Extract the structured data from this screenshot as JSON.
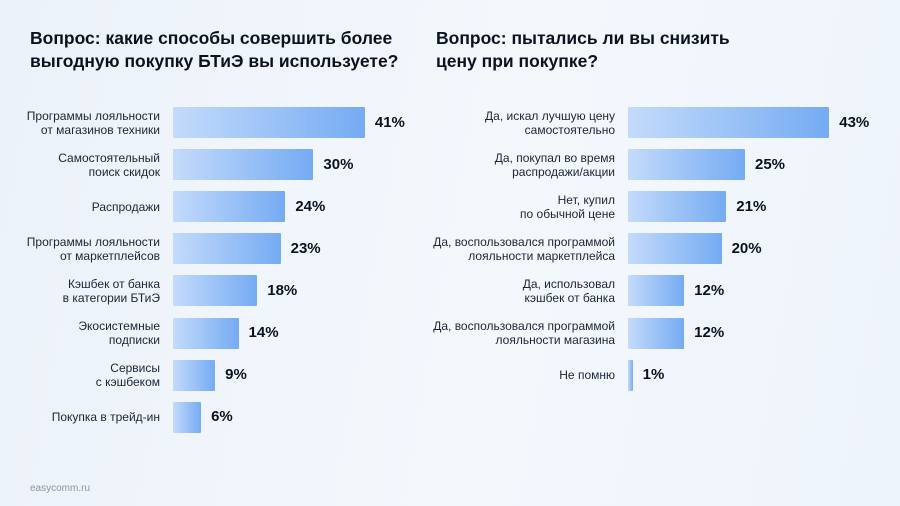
{
  "colors": {
    "background_start": "#ecf2fa",
    "background_mid": "#f4f8fd",
    "background_end": "#eef4fc",
    "text": "#0c1120",
    "label_text": "#1d2434",
    "footer_text": "#8b95a7",
    "bar_start": "#c4dbfb",
    "bar_end": "#75abf3"
  },
  "footer": {
    "site": "easycomm.ru"
  },
  "chart_data": [
    {
      "type": "bar",
      "orientation": "horizontal",
      "title": "Вопрос: какие способы совершить более\nвыгодную покупку БТиЭ вы используете?",
      "categories": [
        "Программы лояльности\nот магазинов техники",
        "Самостоятельный\nпоиск скидок",
        "Распродажи",
        "Программы лояльности\nот маркетплейсов",
        "Кэшбек от банка\nв категории БТиЭ",
        "Экосистемные\nподписки",
        "Сервисы\nс кэшбеком",
        "Покупка в трейд-ин"
      ],
      "values": [
        41,
        30,
        24,
        23,
        18,
        14,
        9,
        6
      ],
      "unit": "%",
      "grid": false,
      "axes_visible": false
    },
    {
      "type": "bar",
      "orientation": "horizontal",
      "title": "Вопрос: пытались ли вы снизить\nцену при покупке?",
      "categories": [
        "Да, искал лучшую цену\nсамостоятельно",
        "Да, покупал во время\nраспродажи/акции",
        "Нет, купил\nпо обычной цене",
        "Да, воспользовался программой\nлояльности маркетплейса",
        "Да, использовал\nкэшбек от банка",
        "Да, воспользовался программой\nлояльности магазина",
        "Не помню"
      ],
      "values": [
        43,
        25,
        21,
        20,
        12,
        12,
        1
      ],
      "unit": "%",
      "grid": false,
      "axes_visible": false
    }
  ]
}
